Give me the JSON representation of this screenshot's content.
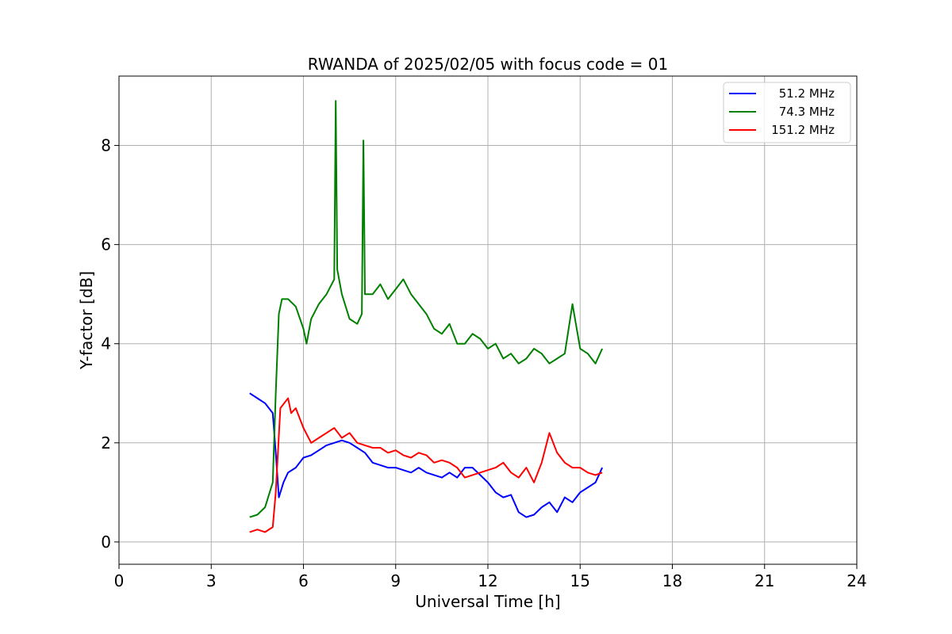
{
  "chart_data": {
    "type": "line",
    "title": "RWANDA of 2025/02/05 with focus code = 01",
    "xlabel": "Universal Time [h]",
    "ylabel": "Y-factor [dB]",
    "xlim": [
      0,
      24
    ],
    "ylim": [
      -0.45,
      9.4
    ],
    "xticks": [
      0,
      3,
      6,
      9,
      12,
      15,
      18,
      21,
      24
    ],
    "xtick_labels": [
      "0",
      "3",
      "6",
      "9",
      "12",
      "15",
      "18",
      "21",
      "24"
    ],
    "yticks": [
      0,
      2,
      4,
      6,
      8
    ],
    "ytick_labels": [
      "0",
      "2",
      "4",
      "6",
      "8"
    ],
    "grid": true,
    "legend_position": "top-right",
    "series": [
      {
        "name": "51.2 MHz",
        "color": "#0000ff",
        "x": [
          4.25,
          4.5,
          4.75,
          5.0,
          5.1,
          5.2,
          5.35,
          5.5,
          5.75,
          6.0,
          6.25,
          6.5,
          6.75,
          7.0,
          7.25,
          7.5,
          7.75,
          8.0,
          8.25,
          8.5,
          8.75,
          9.0,
          9.25,
          9.5,
          9.75,
          10.0,
          10.25,
          10.5,
          10.75,
          11.0,
          11.25,
          11.5,
          11.75,
          12.0,
          12.25,
          12.5,
          12.75,
          13.0,
          13.25,
          13.5,
          13.75,
          14.0,
          14.25,
          14.5,
          14.75,
          15.0,
          15.25,
          15.5,
          15.72
        ],
        "y": [
          3.0,
          2.9,
          2.8,
          2.6,
          1.8,
          0.9,
          1.2,
          1.4,
          1.5,
          1.7,
          1.75,
          1.85,
          1.95,
          2.0,
          2.05,
          2.0,
          1.9,
          1.8,
          1.6,
          1.55,
          1.5,
          1.5,
          1.45,
          1.4,
          1.5,
          1.4,
          1.35,
          1.3,
          1.4,
          1.3,
          1.5,
          1.5,
          1.35,
          1.2,
          1.0,
          0.9,
          0.95,
          0.6,
          0.5,
          0.55,
          0.7,
          0.8,
          0.6,
          0.9,
          0.8,
          1.0,
          1.1,
          1.2,
          1.5
        ]
      },
      {
        "name": "74.3 MHz",
        "color": "#008000",
        "x": [
          4.25,
          4.5,
          4.75,
          5.0,
          5.1,
          5.2,
          5.3,
          5.5,
          5.75,
          6.0,
          6.1,
          6.25,
          6.5,
          6.75,
          7.0,
          7.05,
          7.1,
          7.25,
          7.5,
          7.75,
          7.9,
          7.95,
          8.0,
          8.25,
          8.5,
          8.75,
          9.0,
          9.25,
          9.5,
          9.75,
          10.0,
          10.25,
          10.5,
          10.75,
          11.0,
          11.25,
          11.5,
          11.75,
          12.0,
          12.25,
          12.5,
          12.75,
          13.0,
          13.25,
          13.5,
          13.75,
          14.0,
          14.25,
          14.5,
          14.75,
          15.0,
          15.25,
          15.5,
          15.72
        ],
        "y": [
          0.5,
          0.55,
          0.7,
          1.2,
          3.0,
          4.6,
          4.9,
          4.9,
          4.75,
          4.3,
          4.0,
          4.5,
          4.8,
          5.0,
          5.3,
          8.9,
          5.5,
          5.0,
          4.5,
          4.4,
          4.6,
          8.1,
          5.0,
          5.0,
          5.2,
          4.9,
          5.1,
          5.3,
          5.0,
          4.8,
          4.6,
          4.3,
          4.2,
          4.4,
          4.0,
          4.0,
          4.2,
          4.1,
          3.9,
          4.0,
          3.7,
          3.8,
          3.6,
          3.7,
          3.9,
          3.8,
          3.6,
          3.7,
          3.8,
          4.8,
          3.9,
          3.8,
          3.6,
          3.9
        ]
      },
      {
        "name": "151.2 MHz",
        "color": "#ff0000",
        "x": [
          4.25,
          4.5,
          4.75,
          5.0,
          5.1,
          5.25,
          5.5,
          5.6,
          5.75,
          6.0,
          6.25,
          6.5,
          6.75,
          7.0,
          7.25,
          7.5,
          7.75,
          8.0,
          8.25,
          8.5,
          8.75,
          9.0,
          9.25,
          9.5,
          9.75,
          10.0,
          10.25,
          10.5,
          10.75,
          11.0,
          11.25,
          11.5,
          11.75,
          12.0,
          12.25,
          12.5,
          12.75,
          13.0,
          13.25,
          13.5,
          13.75,
          14.0,
          14.25,
          14.5,
          14.75,
          15.0,
          15.25,
          15.5,
          15.72
        ],
        "y": [
          0.2,
          0.25,
          0.2,
          0.3,
          1.0,
          2.7,
          2.9,
          2.6,
          2.7,
          2.3,
          2.0,
          2.1,
          2.2,
          2.3,
          2.1,
          2.2,
          2.0,
          1.95,
          1.9,
          1.9,
          1.8,
          1.85,
          1.75,
          1.7,
          1.8,
          1.75,
          1.6,
          1.65,
          1.6,
          1.5,
          1.3,
          1.35,
          1.4,
          1.45,
          1.5,
          1.6,
          1.4,
          1.3,
          1.5,
          1.2,
          1.6,
          2.2,
          1.8,
          1.6,
          1.5,
          1.5,
          1.4,
          1.35,
          1.4
        ]
      }
    ]
  }
}
